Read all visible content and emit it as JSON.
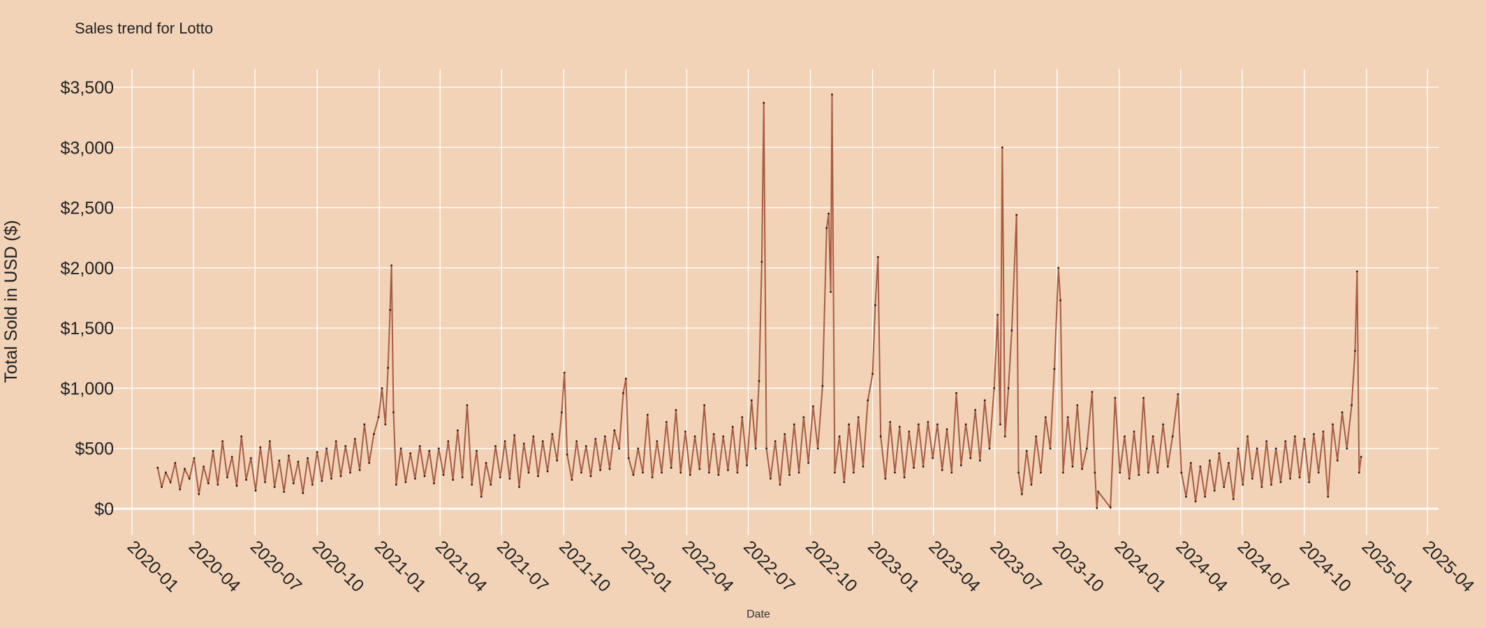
{
  "chart_data": {
    "type": "line",
    "title": "Sales trend for Lotto",
    "xlabel": "Date",
    "ylabel": "Total Sold in USD ($)",
    "xlim": [
      "2020-01-01",
      "2025-04-01"
    ],
    "ylim": [
      0,
      3500
    ],
    "grid": true,
    "legend": "none",
    "y_ticks": [
      "$0",
      "$500",
      "$1,000",
      "$1,500",
      "$2,000",
      "$2,500",
      "$3,000",
      "$3,500"
    ],
    "y_tick_values": [
      0,
      500,
      1000,
      1500,
      2000,
      2500,
      3000,
      3500
    ],
    "x_ticks": [
      "2020-01",
      "2020-04",
      "2020-07",
      "2020-10",
      "2021-01",
      "2021-04",
      "2021-07",
      "2021-10",
      "2022-01",
      "2022-04",
      "2022-07",
      "2022-10",
      "2023-01",
      "2023-04",
      "2023-07",
      "2023-10",
      "2024-01",
      "2024-04",
      "2024-07",
      "2024-10",
      "2025-01",
      "2025-04"
    ],
    "colors": {
      "background": "#f2d3b8",
      "line": "#a65c43",
      "points": "#2a1a14",
      "grid": "#ffffff"
    },
    "series": [
      {
        "points": [
          [
            "2020-02-08",
            340
          ],
          [
            "2020-02-14",
            180
          ],
          [
            "2020-02-20",
            300
          ],
          [
            "2020-02-27",
            220
          ],
          [
            "2020-03-05",
            380
          ],
          [
            "2020-03-12",
            160
          ],
          [
            "2020-03-19",
            330
          ],
          [
            "2020-03-26",
            250
          ],
          [
            "2020-04-02",
            420
          ],
          [
            "2020-04-09",
            120
          ],
          [
            "2020-04-16",
            350
          ],
          [
            "2020-04-23",
            210
          ],
          [
            "2020-04-30",
            480
          ],
          [
            "2020-05-07",
            200
          ],
          [
            "2020-05-14",
            560
          ],
          [
            "2020-05-21",
            260
          ],
          [
            "2020-05-28",
            430
          ],
          [
            "2020-06-04",
            190
          ],
          [
            "2020-06-11",
            600
          ],
          [
            "2020-06-18",
            240
          ],
          [
            "2020-06-25",
            420
          ],
          [
            "2020-07-02",
            150
          ],
          [
            "2020-07-09",
            510
          ],
          [
            "2020-07-16",
            220
          ],
          [
            "2020-07-23",
            560
          ],
          [
            "2020-07-30",
            180
          ],
          [
            "2020-08-06",
            400
          ],
          [
            "2020-08-13",
            140
          ],
          [
            "2020-08-20",
            440
          ],
          [
            "2020-08-27",
            210
          ],
          [
            "2020-09-03",
            390
          ],
          [
            "2020-09-10",
            130
          ],
          [
            "2020-09-17",
            420
          ],
          [
            "2020-09-24",
            200
          ],
          [
            "2020-10-01",
            470
          ],
          [
            "2020-10-08",
            230
          ],
          [
            "2020-10-15",
            500
          ],
          [
            "2020-10-22",
            250
          ],
          [
            "2020-10-29",
            560
          ],
          [
            "2020-11-05",
            270
          ],
          [
            "2020-11-12",
            520
          ],
          [
            "2020-11-19",
            300
          ],
          [
            "2020-11-26",
            580
          ],
          [
            "2020-12-03",
            320
          ],
          [
            "2020-12-10",
            700
          ],
          [
            "2020-12-17",
            380
          ],
          [
            "2020-12-24",
            620
          ],
          [
            "2020-12-31",
            760
          ],
          [
            "2021-01-05",
            1000
          ],
          [
            "2021-01-10",
            700
          ],
          [
            "2021-01-14",
            1170
          ],
          [
            "2021-01-17",
            1650
          ],
          [
            "2021-01-19",
            2020
          ],
          [
            "2021-01-22",
            800
          ],
          [
            "2021-01-26",
            200
          ],
          [
            "2021-02-02",
            500
          ],
          [
            "2021-02-09",
            220
          ],
          [
            "2021-02-16",
            460
          ],
          [
            "2021-02-23",
            250
          ],
          [
            "2021-03-02",
            520
          ],
          [
            "2021-03-09",
            270
          ],
          [
            "2021-03-16",
            480
          ],
          [
            "2021-03-23",
            210
          ],
          [
            "2021-03-30",
            500
          ],
          [
            "2021-04-06",
            280
          ],
          [
            "2021-04-13",
            560
          ],
          [
            "2021-04-20",
            240
          ],
          [
            "2021-04-27",
            650
          ],
          [
            "2021-05-04",
            260
          ],
          [
            "2021-05-11",
            860
          ],
          [
            "2021-05-18",
            200
          ],
          [
            "2021-05-25",
            480
          ],
          [
            "2021-06-01",
            100
          ],
          [
            "2021-06-08",
            380
          ],
          [
            "2021-06-15",
            200
          ],
          [
            "2021-06-22",
            520
          ],
          [
            "2021-06-29",
            260
          ],
          [
            "2021-07-06",
            560
          ],
          [
            "2021-07-13",
            250
          ],
          [
            "2021-07-20",
            610
          ],
          [
            "2021-07-27",
            180
          ],
          [
            "2021-08-03",
            540
          ],
          [
            "2021-08-10",
            300
          ],
          [
            "2021-08-17",
            600
          ],
          [
            "2021-08-24",
            270
          ],
          [
            "2021-08-31",
            560
          ],
          [
            "2021-09-07",
            310
          ],
          [
            "2021-09-14",
            620
          ],
          [
            "2021-09-21",
            400
          ],
          [
            "2021-09-28",
            800
          ],
          [
            "2021-10-02",
            1130
          ],
          [
            "2021-10-06",
            450
          ],
          [
            "2021-10-13",
            240
          ],
          [
            "2021-10-20",
            560
          ],
          [
            "2021-10-27",
            300
          ],
          [
            "2021-11-03",
            520
          ],
          [
            "2021-11-10",
            270
          ],
          [
            "2021-11-17",
            580
          ],
          [
            "2021-11-24",
            320
          ],
          [
            "2021-12-01",
            600
          ],
          [
            "2021-12-08",
            330
          ],
          [
            "2021-12-15",
            650
          ],
          [
            "2021-12-22",
            500
          ],
          [
            "2021-12-28",
            960
          ],
          [
            "2022-01-01",
            1080
          ],
          [
            "2022-01-05",
            420
          ],
          [
            "2022-01-12",
            280
          ],
          [
            "2022-01-19",
            500
          ],
          [
            "2022-01-26",
            300
          ],
          [
            "2022-02-02",
            780
          ],
          [
            "2022-02-09",
            260
          ],
          [
            "2022-02-16",
            560
          ],
          [
            "2022-02-23",
            300
          ],
          [
            "2022-03-02",
            720
          ],
          [
            "2022-03-09",
            340
          ],
          [
            "2022-03-16",
            820
          ],
          [
            "2022-03-23",
            300
          ],
          [
            "2022-03-30",
            640
          ],
          [
            "2022-04-06",
            280
          ],
          [
            "2022-04-13",
            600
          ],
          [
            "2022-04-20",
            330
          ],
          [
            "2022-04-27",
            860
          ],
          [
            "2022-05-04",
            300
          ],
          [
            "2022-05-11",
            620
          ],
          [
            "2022-05-18",
            280
          ],
          [
            "2022-05-25",
            600
          ],
          [
            "2022-06-01",
            320
          ],
          [
            "2022-06-08",
            680
          ],
          [
            "2022-06-15",
            300
          ],
          [
            "2022-06-22",
            760
          ],
          [
            "2022-06-29",
            360
          ],
          [
            "2022-07-06",
            900
          ],
          [
            "2022-07-12",
            500
          ],
          [
            "2022-07-17",
            1060
          ],
          [
            "2022-07-21",
            2050
          ],
          [
            "2022-07-24",
            3370
          ],
          [
            "2022-07-28",
            500
          ],
          [
            "2022-08-03",
            250
          ],
          [
            "2022-08-10",
            560
          ],
          [
            "2022-08-17",
            200
          ],
          [
            "2022-08-24",
            620
          ],
          [
            "2022-08-31",
            280
          ],
          [
            "2022-09-07",
            700
          ],
          [
            "2022-09-14",
            300
          ],
          [
            "2022-09-21",
            760
          ],
          [
            "2022-09-28",
            380
          ],
          [
            "2022-10-05",
            850
          ],
          [
            "2022-10-12",
            500
          ],
          [
            "2022-10-19",
            1020
          ],
          [
            "2022-10-25",
            2330
          ],
          [
            "2022-10-28",
            2450
          ],
          [
            "2022-10-31",
            1800
          ],
          [
            "2022-11-02",
            3440
          ],
          [
            "2022-11-06",
            300
          ],
          [
            "2022-11-13",
            600
          ],
          [
            "2022-11-20",
            220
          ],
          [
            "2022-11-27",
            700
          ],
          [
            "2022-12-04",
            300
          ],
          [
            "2022-12-11",
            760
          ],
          [
            "2022-12-18",
            350
          ],
          [
            "2022-12-25",
            900
          ],
          [
            "2023-01-01",
            1120
          ],
          [
            "2023-01-05",
            1690
          ],
          [
            "2023-01-09",
            2090
          ],
          [
            "2023-01-13",
            600
          ],
          [
            "2023-01-20",
            250
          ],
          [
            "2023-01-27",
            720
          ],
          [
            "2023-02-03",
            300
          ],
          [
            "2023-02-10",
            680
          ],
          [
            "2023-02-17",
            260
          ],
          [
            "2023-02-24",
            640
          ],
          [
            "2023-03-03",
            340
          ],
          [
            "2023-03-10",
            700
          ],
          [
            "2023-03-17",
            350
          ],
          [
            "2023-03-24",
            720
          ],
          [
            "2023-03-31",
            420
          ],
          [
            "2023-04-07",
            700
          ],
          [
            "2023-04-14",
            320
          ],
          [
            "2023-04-21",
            660
          ],
          [
            "2023-04-28",
            300
          ],
          [
            "2023-05-05",
            960
          ],
          [
            "2023-05-12",
            360
          ],
          [
            "2023-05-19",
            700
          ],
          [
            "2023-05-26",
            420
          ],
          [
            "2023-06-02",
            820
          ],
          [
            "2023-06-09",
            400
          ],
          [
            "2023-06-16",
            900
          ],
          [
            "2023-06-23",
            500
          ],
          [
            "2023-06-30",
            1000
          ],
          [
            "2023-07-05",
            1610
          ],
          [
            "2023-07-09",
            700
          ],
          [
            "2023-07-12",
            3000
          ],
          [
            "2023-07-16",
            600
          ],
          [
            "2023-07-21",
            1000
          ],
          [
            "2023-07-26",
            1480
          ],
          [
            "2023-08-02",
            2440
          ],
          [
            "2023-08-05",
            300
          ],
          [
            "2023-08-10",
            120
          ],
          [
            "2023-08-17",
            480
          ],
          [
            "2023-08-24",
            200
          ],
          [
            "2023-08-31",
            600
          ],
          [
            "2023-09-07",
            300
          ],
          [
            "2023-09-14",
            760
          ],
          [
            "2023-09-21",
            500
          ],
          [
            "2023-09-27",
            1160
          ],
          [
            "2023-10-03",
            2000
          ],
          [
            "2023-10-06",
            1730
          ],
          [
            "2023-10-10",
            300
          ],
          [
            "2023-10-17",
            760
          ],
          [
            "2023-10-24",
            350
          ],
          [
            "2023-10-31",
            860
          ],
          [
            "2023-11-07",
            330
          ],
          [
            "2023-11-14",
            500
          ],
          [
            "2023-11-22",
            970
          ],
          [
            "2023-11-26",
            300
          ],
          [
            "2023-11-29",
            5
          ],
          [
            "2023-12-01",
            140
          ],
          [
            "2023-12-19",
            10
          ],
          [
            "2023-12-26",
            920
          ],
          [
            "2024-01-02",
            300
          ],
          [
            "2024-01-09",
            600
          ],
          [
            "2024-01-16",
            250
          ],
          [
            "2024-01-23",
            640
          ],
          [
            "2024-01-30",
            280
          ],
          [
            "2024-02-06",
            920
          ],
          [
            "2024-02-13",
            300
          ],
          [
            "2024-02-20",
            600
          ],
          [
            "2024-02-27",
            300
          ],
          [
            "2024-03-06",
            700
          ],
          [
            "2024-03-13",
            350
          ],
          [
            "2024-03-20",
            600
          ],
          [
            "2024-03-28",
            950
          ],
          [
            "2024-04-02",
            300
          ],
          [
            "2024-04-09",
            100
          ],
          [
            "2024-04-16",
            380
          ],
          [
            "2024-04-23",
            60
          ],
          [
            "2024-04-30",
            350
          ],
          [
            "2024-05-07",
            100
          ],
          [
            "2024-05-14",
            400
          ],
          [
            "2024-05-21",
            150
          ],
          [
            "2024-05-28",
            460
          ],
          [
            "2024-06-04",
            180
          ],
          [
            "2024-06-11",
            380
          ],
          [
            "2024-06-18",
            80
          ],
          [
            "2024-06-25",
            500
          ],
          [
            "2024-07-02",
            200
          ],
          [
            "2024-07-09",
            600
          ],
          [
            "2024-07-16",
            250
          ],
          [
            "2024-07-23",
            500
          ],
          [
            "2024-07-30",
            180
          ],
          [
            "2024-08-06",
            560
          ],
          [
            "2024-08-13",
            200
          ],
          [
            "2024-08-20",
            500
          ],
          [
            "2024-08-27",
            220
          ],
          [
            "2024-09-03",
            560
          ],
          [
            "2024-09-10",
            250
          ],
          [
            "2024-09-17",
            600
          ],
          [
            "2024-09-24",
            260
          ],
          [
            "2024-10-01",
            580
          ],
          [
            "2024-10-08",
            220
          ],
          [
            "2024-10-15",
            620
          ],
          [
            "2024-10-22",
            300
          ],
          [
            "2024-10-29",
            640
          ],
          [
            "2024-11-05",
            100
          ],
          [
            "2024-11-12",
            700
          ],
          [
            "2024-11-19",
            400
          ],
          [
            "2024-11-26",
            800
          ],
          [
            "2024-12-03",
            500
          ],
          [
            "2024-12-10",
            860
          ],
          [
            "2024-12-15",
            1310
          ],
          [
            "2024-12-18",
            1970
          ],
          [
            "2024-12-21",
            300
          ],
          [
            "2024-12-24",
            430
          ]
        ]
      }
    ]
  }
}
